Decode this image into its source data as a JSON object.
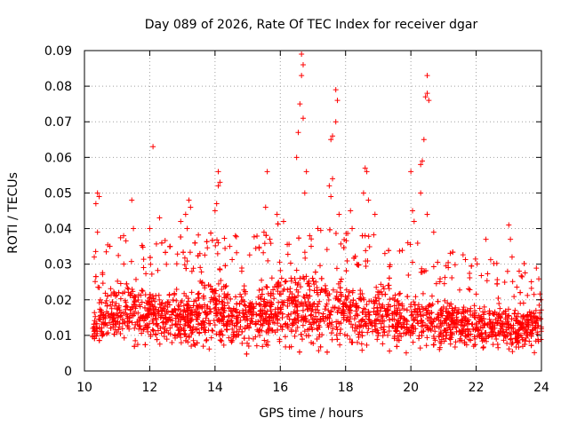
{
  "chart_data": {
    "type": "scatter",
    "title": "Day 089 of 2026, Rate Of TEC Index for receiver dgar",
    "xlabel": "GPS time / hours",
    "ylabel": "ROTI / TECUs",
    "xlim": [
      10,
      24
    ],
    "ylim": [
      0,
      0.09
    ],
    "x_ticks": [
      10,
      12,
      14,
      16,
      18,
      20,
      22,
      24
    ],
    "y_ticks": [
      0,
      0.01,
      0.02,
      0.03,
      0.04,
      0.05,
      0.06,
      0.07,
      0.08,
      0.09
    ],
    "grid": true,
    "legend": "none",
    "marker": "plus",
    "color": "#ff0000",
    "bulk_band": {
      "x_range": [
        10.25,
        24.0
      ],
      "y_typical_range": [
        0.004,
        0.03
      ],
      "profile": [
        {
          "x": 10.3,
          "low": 0.004,
          "high": 0.022
        },
        {
          "x": 11.0,
          "low": 0.004,
          "high": 0.028
        },
        {
          "x": 12.0,
          "low": 0.004,
          "high": 0.027
        },
        {
          "x": 13.0,
          "low": 0.003,
          "high": 0.026
        },
        {
          "x": 14.0,
          "low": 0.004,
          "high": 0.028
        },
        {
          "x": 15.0,
          "low": 0.004,
          "high": 0.025
        },
        {
          "x": 16.0,
          "low": 0.004,
          "high": 0.03
        },
        {
          "x": 17.0,
          "low": 0.003,
          "high": 0.03
        },
        {
          "x": 18.0,
          "low": 0.004,
          "high": 0.028
        },
        {
          "x": 19.0,
          "low": 0.004,
          "high": 0.026
        },
        {
          "x": 20.0,
          "low": 0.004,
          "high": 0.025
        },
        {
          "x": 21.0,
          "low": 0.004,
          "high": 0.022
        },
        {
          "x": 22.0,
          "low": 0.004,
          "high": 0.021
        },
        {
          "x": 23.0,
          "low": 0.003,
          "high": 0.02
        },
        {
          "x": 24.0,
          "low": 0.003,
          "high": 0.02
        }
      ]
    },
    "notable_points": [
      {
        "x": 10.4,
        "y": 0.05
      },
      {
        "x": 10.45,
        "y": 0.049
      },
      {
        "x": 10.35,
        "y": 0.047
      },
      {
        "x": 10.4,
        "y": 0.039
      },
      {
        "x": 10.3,
        "y": 0.032
      },
      {
        "x": 11.2,
        "y": 0.038
      },
      {
        "x": 11.45,
        "y": 0.048
      },
      {
        "x": 11.5,
        "y": 0.04
      },
      {
        "x": 12.1,
        "y": 0.063
      },
      {
        "x": 12.0,
        "y": 0.04
      },
      {
        "x": 12.3,
        "y": 0.043
      },
      {
        "x": 12.95,
        "y": 0.042
      },
      {
        "x": 13.1,
        "y": 0.044
      },
      {
        "x": 13.2,
        "y": 0.048
      },
      {
        "x": 13.25,
        "y": 0.046
      },
      {
        "x": 13.15,
        "y": 0.04
      },
      {
        "x": 14.0,
        "y": 0.045
      },
      {
        "x": 14.05,
        "y": 0.047
      },
      {
        "x": 14.1,
        "y": 0.052
      },
      {
        "x": 14.1,
        "y": 0.056
      },
      {
        "x": 14.15,
        "y": 0.053
      },
      {
        "x": 14.1,
        "y": 0.036
      },
      {
        "x": 14.45,
        "y": 0.035
      },
      {
        "x": 15.6,
        "y": 0.056
      },
      {
        "x": 15.55,
        "y": 0.046
      },
      {
        "x": 15.5,
        "y": 0.039
      },
      {
        "x": 15.9,
        "y": 0.044
      },
      {
        "x": 16.1,
        "y": 0.042
      },
      {
        "x": 16.5,
        "y": 0.06
      },
      {
        "x": 16.55,
        "y": 0.067
      },
      {
        "x": 16.6,
        "y": 0.075
      },
      {
        "x": 16.65,
        "y": 0.083
      },
      {
        "x": 16.65,
        "y": 0.089
      },
      {
        "x": 16.7,
        "y": 0.086
      },
      {
        "x": 16.7,
        "y": 0.071
      },
      {
        "x": 16.75,
        "y": 0.05
      },
      {
        "x": 16.8,
        "y": 0.056
      },
      {
        "x": 16.9,
        "y": 0.038
      },
      {
        "x": 17.6,
        "y": 0.066
      },
      {
        "x": 17.55,
        "y": 0.065
      },
      {
        "x": 17.7,
        "y": 0.07
      },
      {
        "x": 17.75,
        "y": 0.076
      },
      {
        "x": 17.7,
        "y": 0.079
      },
      {
        "x": 17.6,
        "y": 0.054
      },
      {
        "x": 17.5,
        "y": 0.052
      },
      {
        "x": 17.8,
        "y": 0.044
      },
      {
        "x": 17.55,
        "y": 0.049
      },
      {
        "x": 18.15,
        "y": 0.045
      },
      {
        "x": 18.2,
        "y": 0.04
      },
      {
        "x": 18.6,
        "y": 0.057
      },
      {
        "x": 18.65,
        "y": 0.056
      },
      {
        "x": 18.55,
        "y": 0.05
      },
      {
        "x": 18.7,
        "y": 0.048
      },
      {
        "x": 18.9,
        "y": 0.044
      },
      {
        "x": 20.0,
        "y": 0.056
      },
      {
        "x": 20.05,
        "y": 0.045
      },
      {
        "x": 20.1,
        "y": 0.042
      },
      {
        "x": 20.3,
        "y": 0.058
      },
      {
        "x": 20.35,
        "y": 0.059
      },
      {
        "x": 20.4,
        "y": 0.065
      },
      {
        "x": 20.45,
        "y": 0.077
      },
      {
        "x": 20.5,
        "y": 0.078
      },
      {
        "x": 20.5,
        "y": 0.083
      },
      {
        "x": 20.55,
        "y": 0.076
      },
      {
        "x": 20.3,
        "y": 0.05
      },
      {
        "x": 20.5,
        "y": 0.044
      },
      {
        "x": 20.7,
        "y": 0.039
      },
      {
        "x": 22.3,
        "y": 0.037
      },
      {
        "x": 23.0,
        "y": 0.041
      },
      {
        "x": 23.05,
        "y": 0.037
      },
      {
        "x": 23.1,
        "y": 0.032
      }
    ]
  }
}
